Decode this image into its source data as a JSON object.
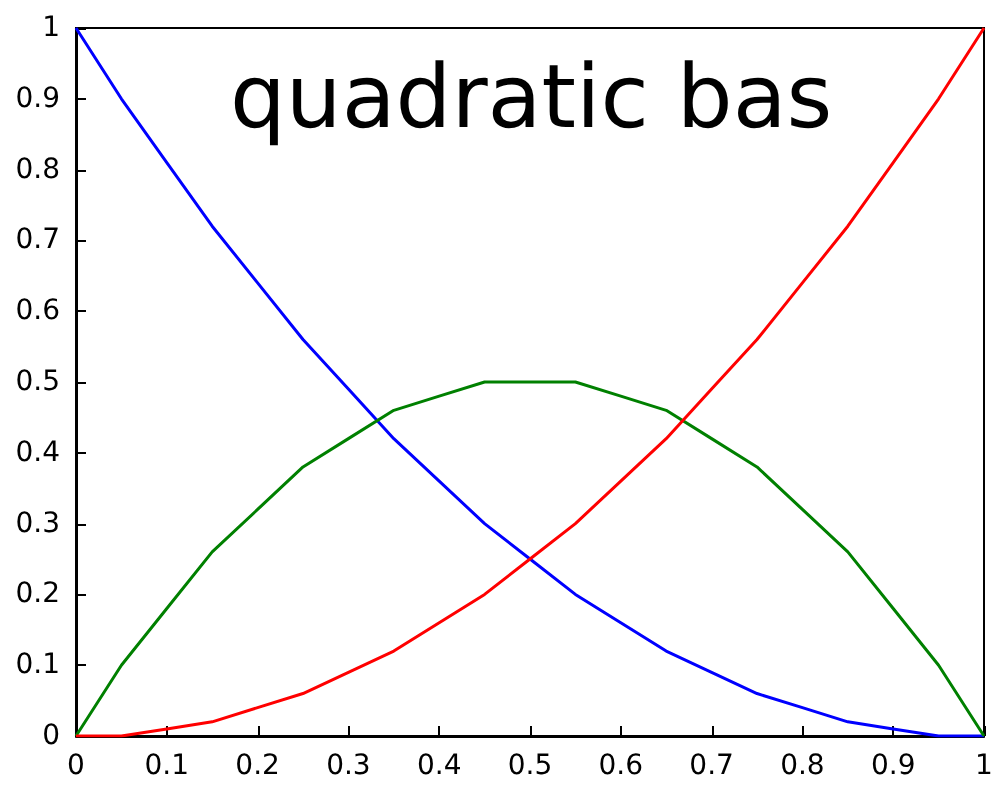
{
  "chart_data": {
    "type": "line",
    "title": "quadratic bas",
    "x": [
      0,
      0.05,
      0.1,
      0.15,
      0.2,
      0.25,
      0.3,
      0.35,
      0.4,
      0.45,
      0.5,
      0.55,
      0.6,
      0.65,
      0.7,
      0.75,
      0.8,
      0.85,
      0.9,
      0.95,
      1
    ],
    "series": [
      {
        "color": "#0000ff",
        "values": [
          1,
          0.9,
          0.81,
          0.72,
          0.64,
          0.56,
          0.49,
          0.42,
          0.36,
          0.3,
          0.25,
          0.2,
          0.16,
          0.12,
          0.09,
          0.06,
          0.04,
          0.02,
          0.01,
          0,
          0
        ]
      },
      {
        "color": "#008000",
        "values": [
          0,
          0.1,
          0.18,
          0.26,
          0.32,
          0.38,
          0.42,
          0.46,
          0.48,
          0.5,
          0.5,
          0.5,
          0.48,
          0.46,
          0.42,
          0.38,
          0.32,
          0.26,
          0.18,
          0.1,
          0
        ]
      },
      {
        "color": "#ff0000",
        "values": [
          0,
          0,
          0.01,
          0.02,
          0.04,
          0.06,
          0.09,
          0.12,
          0.16,
          0.2,
          0.25,
          0.3,
          0.36,
          0.42,
          0.49,
          0.56,
          0.64,
          0.72,
          0.81,
          0.9,
          1
        ]
      }
    ],
    "xlim": [
      0,
      1
    ],
    "ylim": [
      0,
      1
    ],
    "xticks": [
      0,
      0.1,
      0.2,
      0.3,
      0.4,
      0.5,
      0.6,
      0.7,
      0.8,
      0.9,
      1
    ],
    "yticks": [
      0,
      0.1,
      0.2,
      0.3,
      0.4,
      0.5,
      0.6,
      0.7,
      0.8,
      0.9,
      1
    ],
    "grid": false,
    "marker": "none",
    "line_style": "solid"
  }
}
